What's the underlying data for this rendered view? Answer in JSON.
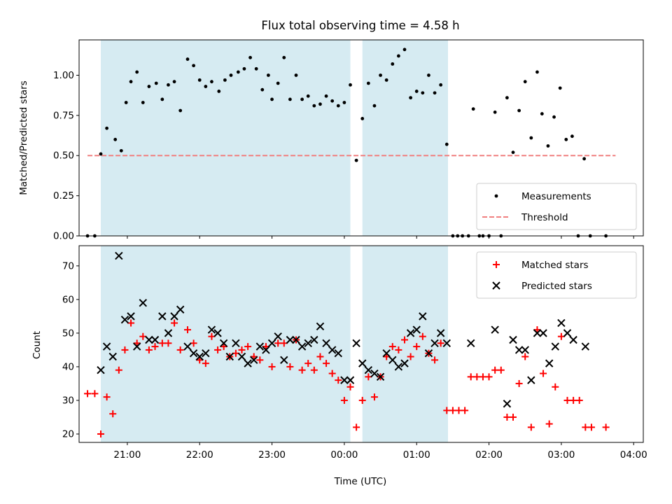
{
  "figure": {
    "title": "Flux total observing time = 4.58 h",
    "xlabel": "Time (UTC)"
  },
  "chart_data": [
    {
      "type": "scatter",
      "ylabel": "Matched/Predicted stars",
      "xlim": [
        "20:20",
        "04:08"
      ],
      "ylim": [
        0,
        1.22
      ],
      "yticks": [
        "0.00",
        "0.25",
        "0.50",
        "0.75",
        "1.00"
      ],
      "shaded_intervals": [
        [
          "20:38",
          "00:05"
        ],
        [
          "00:15",
          "01:26"
        ]
      ],
      "shade_color": "#add8e6",
      "threshold": {
        "name": "Threshold",
        "value": 0.5,
        "x_range": [
          "20:27",
          "03:45"
        ],
        "color": "#f08080"
      },
      "legend_position": "lower-right",
      "series": [
        {
          "name": "Measurements",
          "color": "#000000",
          "marker": "dot",
          "points": [
            [
              "20:27",
              0
            ],
            [
              "20:33",
              0
            ],
            [
              "20:38",
              0.51
            ],
            [
              "20:43",
              0.67
            ],
            [
              "20:50",
              0.6
            ],
            [
              "20:55",
              0.53
            ],
            [
              "20:59",
              0.83
            ],
            [
              "21:03",
              0.96
            ],
            [
              "21:08",
              1.02
            ],
            [
              "21:13",
              0.83
            ],
            [
              "21:18",
              0.93
            ],
            [
              "21:24",
              0.95
            ],
            [
              "21:29",
              0.85
            ],
            [
              "21:34",
              0.94
            ],
            [
              "21:39",
              0.96
            ],
            [
              "21:44",
              0.78
            ],
            [
              "21:50",
              1.1
            ],
            [
              "21:55",
              1.06
            ],
            [
              "22:00",
              0.97
            ],
            [
              "22:05",
              0.93
            ],
            [
              "22:10",
              0.96
            ],
            [
              "22:16",
              0.9
            ],
            [
              "22:21",
              0.97
            ],
            [
              "22:26",
              1
            ],
            [
              "22:32",
              1.02
            ],
            [
              "22:37",
              1.04
            ],
            [
              "22:42",
              1.11
            ],
            [
              "22:47",
              1.04
            ],
            [
              "22:52",
              0.91
            ],
            [
              "22:57",
              1
            ],
            [
              "23:00",
              0.85
            ],
            [
              "23:05",
              0.95
            ],
            [
              "23:10",
              1.11
            ],
            [
              "23:15",
              0.85
            ],
            [
              "23:20",
              1
            ],
            [
              "23:25",
              0.85
            ],
            [
              "23:30",
              0.87
            ],
            [
              "23:35",
              0.81
            ],
            [
              "23:40",
              0.82
            ],
            [
              "23:45",
              0.87
            ],
            [
              "23:50",
              0.84
            ],
            [
              "23:55",
              0.81
            ],
            [
              "00:00",
              0.83
            ],
            [
              "00:05",
              0.94
            ],
            [
              "00:10",
              0.47
            ],
            [
              "00:15",
              0.73
            ],
            [
              "00:20",
              0.95
            ],
            [
              "00:25",
              0.81
            ],
            [
              "00:30",
              1
            ],
            [
              "00:35",
              0.97
            ],
            [
              "00:40",
              1.07
            ],
            [
              "00:45",
              1.12
            ],
            [
              "00:50",
              1.16
            ],
            [
              "00:55",
              0.86
            ],
            [
              "01:00",
              0.9
            ],
            [
              "01:05",
              0.89
            ],
            [
              "01:10",
              1
            ],
            [
              "01:15",
              0.89
            ],
            [
              "01:20",
              0.94
            ],
            [
              "01:25",
              0.57
            ],
            [
              "01:30",
              0
            ],
            [
              "01:34",
              0
            ],
            [
              "01:38",
              0
            ],
            [
              "01:43",
              0
            ],
            [
              "01:47",
              0.79
            ],
            [
              "01:52",
              0
            ],
            [
              "01:55",
              0
            ],
            [
              "02:00",
              0
            ],
            [
              "02:05",
              0.77
            ],
            [
              "02:10",
              0
            ],
            [
              "02:15",
              0.86
            ],
            [
              "02:20",
              0.52
            ],
            [
              "02:25",
              0.78
            ],
            [
              "02:30",
              0.96
            ],
            [
              "02:35",
              0.61
            ],
            [
              "02:40",
              1.02
            ],
            [
              "02:44",
              0.76
            ],
            [
              "02:49",
              0.56
            ],
            [
              "02:54",
              0.74
            ],
            [
              "02:59",
              0.92
            ],
            [
              "03:04",
              0.6
            ],
            [
              "03:09",
              0.62
            ],
            [
              "03:14",
              0
            ],
            [
              "03:19",
              0.48
            ],
            [
              "03:24",
              0
            ],
            [
              "03:37",
              0
            ]
          ]
        }
      ]
    },
    {
      "type": "scatter",
      "ylabel": "Count",
      "xlim": [
        "20:20",
        "04:08"
      ],
      "ylim": [
        17.5,
        76
      ],
      "yticks": [
        "20",
        "30",
        "40",
        "50",
        "60",
        "70"
      ],
      "xticks": [
        "21:00",
        "22:00",
        "23:00",
        "00:00",
        "01:00",
        "02:00",
        "03:00",
        "04:00"
      ],
      "shaded_intervals": [
        [
          "20:38",
          "00:05"
        ],
        [
          "00:15",
          "01:26"
        ]
      ],
      "shade_color": "#add8e6",
      "legend_position": "upper-right",
      "series": [
        {
          "name": "Matched stars",
          "color": "#ff0000",
          "marker": "plus",
          "points": [
            [
              "20:27",
              32
            ],
            [
              "20:33",
              32
            ],
            [
              "20:38",
              20
            ],
            [
              "20:43",
              31
            ],
            [
              "20:48",
              26
            ],
            [
              "20:53",
              39
            ],
            [
              "20:58",
              45
            ],
            [
              "21:03",
              53
            ],
            [
              "21:08",
              47
            ],
            [
              "21:13",
              49
            ],
            [
              "21:18",
              45
            ],
            [
              "21:23",
              46
            ],
            [
              "21:29",
              47
            ],
            [
              "21:34",
              47
            ],
            [
              "21:39",
              53
            ],
            [
              "21:44",
              45
            ],
            [
              "21:50",
              51
            ],
            [
              "21:55",
              47
            ],
            [
              "22:00",
              42
            ],
            [
              "22:05",
              41
            ],
            [
              "22:10",
              49
            ],
            [
              "22:15",
              45
            ],
            [
              "22:20",
              46
            ],
            [
              "22:25",
              43
            ],
            [
              "22:30",
              44
            ],
            [
              "22:35",
              45
            ],
            [
              "22:40",
              46
            ],
            [
              "22:45",
              43
            ],
            [
              "22:50",
              42
            ],
            [
              "22:55",
              46
            ],
            [
              "23:00",
              40
            ],
            [
              "23:05",
              47
            ],
            [
              "23:10",
              47
            ],
            [
              "23:15",
              40
            ],
            [
              "23:20",
              48
            ],
            [
              "23:25",
              39
            ],
            [
              "23:30",
              41
            ],
            [
              "23:35",
              39
            ],
            [
              "23:40",
              43
            ],
            [
              "23:45",
              41
            ],
            [
              "23:50",
              38
            ],
            [
              "23:55",
              36
            ],
            [
              "00:00",
              30
            ],
            [
              "00:05",
              34
            ],
            [
              "00:10",
              22
            ],
            [
              "00:15",
              30
            ],
            [
              "00:20",
              37
            ],
            [
              "00:25",
              31
            ],
            [
              "00:30",
              37
            ],
            [
              "00:35",
              43
            ],
            [
              "00:40",
              46
            ],
            [
              "00:45",
              45
            ],
            [
              "00:50",
              48
            ],
            [
              "00:55",
              43
            ],
            [
              "01:00",
              46
            ],
            [
              "01:05",
              49
            ],
            [
              "01:10",
              44
            ],
            [
              "01:15",
              42
            ],
            [
              "01:20",
              47
            ],
            [
              "01:25",
              27
            ],
            [
              "01:30",
              27
            ],
            [
              "01:35",
              27
            ],
            [
              "01:40",
              27
            ],
            [
              "01:45",
              37
            ],
            [
              "01:50",
              37
            ],
            [
              "01:55",
              37
            ],
            [
              "02:00",
              37
            ],
            [
              "02:05",
              39
            ],
            [
              "02:10",
              39
            ],
            [
              "02:15",
              25
            ],
            [
              "02:20",
              25
            ],
            [
              "02:25",
              35
            ],
            [
              "02:30",
              43
            ],
            [
              "02:35",
              22
            ],
            [
              "02:40",
              51
            ],
            [
              "02:45",
              38
            ],
            [
              "02:50",
              23
            ],
            [
              "02:55",
              34
            ],
            [
              "03:00",
              49
            ],
            [
              "03:05",
              30
            ],
            [
              "03:10",
              30
            ],
            [
              "03:15",
              30
            ],
            [
              "03:20",
              22
            ],
            [
              "03:25",
              22
            ],
            [
              "03:37",
              22
            ]
          ]
        },
        {
          "name": "Predicted stars",
          "color": "#000000",
          "marker": "x",
          "points": [
            [
              "20:38",
              39
            ],
            [
              "20:43",
              46
            ],
            [
              "20:48",
              43
            ],
            [
              "20:53",
              73
            ],
            [
              "20:58",
              54
            ],
            [
              "21:03",
              55
            ],
            [
              "21:08",
              46
            ],
            [
              "21:13",
              59
            ],
            [
              "21:18",
              48
            ],
            [
              "21:23",
              48
            ],
            [
              "21:29",
              55
            ],
            [
              "21:34",
              50
            ],
            [
              "21:39",
              55
            ],
            [
              "21:44",
              57
            ],
            [
              "21:50",
              46
            ],
            [
              "21:55",
              44
            ],
            [
              "22:00",
              43
            ],
            [
              "22:05",
              44
            ],
            [
              "22:10",
              51
            ],
            [
              "22:15",
              50
            ],
            [
              "22:20",
              47
            ],
            [
              "22:25",
              43
            ],
            [
              "22:30",
              47
            ],
            [
              "22:35",
              43
            ],
            [
              "22:40",
              41
            ],
            [
              "22:45",
              42
            ],
            [
              "22:50",
              46
            ],
            [
              "22:55",
              45
            ],
            [
              "23:00",
              47
            ],
            [
              "23:05",
              49
            ],
            [
              "23:10",
              42
            ],
            [
              "23:15",
              48
            ],
            [
              "23:20",
              48
            ],
            [
              "23:25",
              46
            ],
            [
              "23:30",
              47
            ],
            [
              "23:35",
              48
            ],
            [
              "23:40",
              52
            ],
            [
              "23:45",
              47
            ],
            [
              "23:50",
              45
            ],
            [
              "23:55",
              44
            ],
            [
              "00:00",
              36
            ],
            [
              "00:05",
              36
            ],
            [
              "00:10",
              47
            ],
            [
              "00:15",
              41
            ],
            [
              "00:20",
              39
            ],
            [
              "00:25",
              38
            ],
            [
              "00:30",
              37
            ],
            [
              "00:35",
              44
            ],
            [
              "00:40",
              42
            ],
            [
              "00:45",
              40
            ],
            [
              "00:50",
              41
            ],
            [
              "00:55",
              50
            ],
            [
              "01:00",
              51
            ],
            [
              "01:05",
              55
            ],
            [
              "01:10",
              44
            ],
            [
              "01:15",
              47
            ],
            [
              "01:20",
              50
            ],
            [
              "01:25",
              47
            ],
            [
              "01:45",
              47
            ],
            [
              "02:05",
              51
            ],
            [
              "02:15",
              29
            ],
            [
              "02:20",
              48
            ],
            [
              "02:25",
              45
            ],
            [
              "02:30",
              45
            ],
            [
              "02:35",
              36
            ],
            [
              "02:40",
              50
            ],
            [
              "02:45",
              50
            ],
            [
              "02:50",
              41
            ],
            [
              "02:55",
              46
            ],
            [
              "03:00",
              53
            ],
            [
              "03:05",
              50
            ],
            [
              "03:10",
              48
            ],
            [
              "03:20",
              46
            ]
          ]
        }
      ]
    }
  ]
}
